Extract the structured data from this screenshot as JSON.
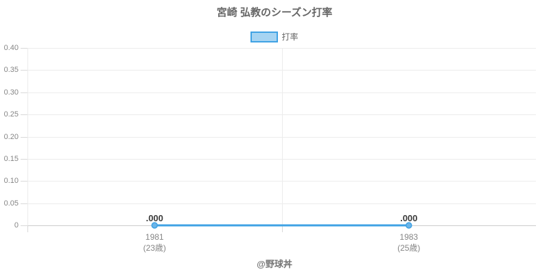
{
  "page": {
    "title": "宮崎 弘教のシーズン打率",
    "footer": "@野球丼"
  },
  "legend": {
    "label": "打率"
  },
  "colors": {
    "accent_line": "#3fa2e4",
    "accent_fill": "#a6d4f2",
    "point_fill": "#6cb5e8",
    "grid": "#ececec",
    "axis_zero": "#cccccc",
    "tick": "#d8d8d8"
  },
  "chart_data": {
    "type": "line",
    "title": "宮崎 弘教のシーズン打率",
    "categories": [
      "1981",
      "1983"
    ],
    "category_sublabels": [
      "(23歳)",
      "(25歳)"
    ],
    "series": [
      {
        "name": "打率",
        "values": [
          0.0,
          0.0
        ],
        "point_labels": [
          ".000",
          ".000"
        ]
      }
    ],
    "xlabel": "",
    "ylabel": "",
    "ylim": [
      0,
      0.4
    ],
    "yticks": [
      {
        "value": 0.4,
        "label": "0.40"
      },
      {
        "value": 0.35,
        "label": "0.35"
      },
      {
        "value": 0.3,
        "label": "0.30"
      },
      {
        "value": 0.25,
        "label": "0.25"
      },
      {
        "value": 0.2,
        "label": "0.20"
      },
      {
        "value": 0.15,
        "label": "0.15"
      },
      {
        "value": 0.1,
        "label": "0.10"
      },
      {
        "value": 0.05,
        "label": "0.05"
      },
      {
        "value": 0,
        "label": "0"
      }
    ],
    "grid": true,
    "legend_position": "top-center"
  }
}
